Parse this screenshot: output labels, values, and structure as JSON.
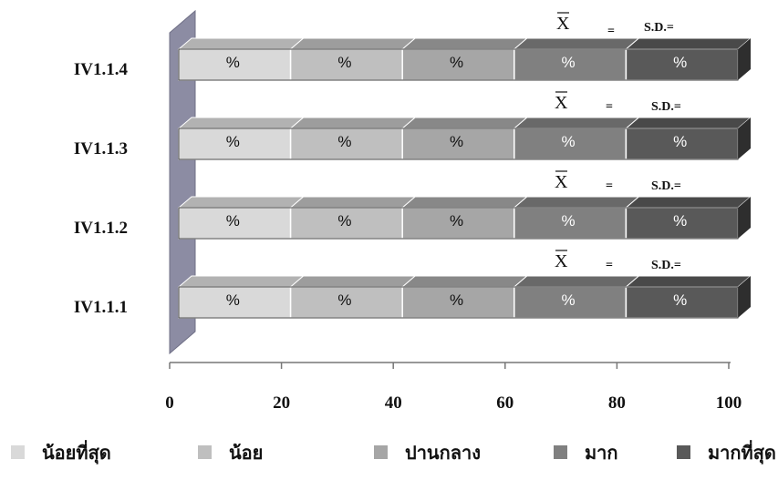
{
  "chart_data": {
    "type": "bar",
    "orientation": "horizontal",
    "stacked": true,
    "style": "3d",
    "categories": [
      "IV1.1.4",
      "IV1.1.3",
      "IV1.1.2",
      "IV1.1.1"
    ],
    "series": [
      {
        "name": "น้อยที่สุด",
        "color": "#d9d9d9",
        "values": [
          20,
          20,
          20,
          20
        ],
        "labels": [
          "%",
          "%",
          "%",
          "%"
        ]
      },
      {
        "name": "น้อย",
        "color": "#bfbfbf",
        "values": [
          20,
          20,
          20,
          20
        ],
        "labels": [
          "%",
          "%",
          "%",
          "%"
        ]
      },
      {
        "name": "ปานกลาง",
        "color": "#a6a6a6",
        "values": [
          20,
          20,
          20,
          20
        ],
        "labels": [
          "%",
          "%",
          "%",
          "%"
        ]
      },
      {
        "name": "มาก",
        "color": "#808080",
        "values": [
          20,
          20,
          20,
          20
        ],
        "labels": [
          "%",
          "%",
          "%",
          "%"
        ]
      },
      {
        "name": "มากที่สุด",
        "color": "#595959",
        "values": [
          20,
          20,
          20,
          20
        ],
        "labels": [
          "%",
          "%",
          "%",
          "%"
        ]
      }
    ],
    "annotations": [
      {
        "category": "IV1.1.4",
        "mean_symbol": "X",
        "equals": "=",
        "sd": "S.D.="
      },
      {
        "category": "IV1.1.3",
        "mean_symbol": "X",
        "equals": "=",
        "sd": "S.D.="
      },
      {
        "category": "IV1.1.2",
        "mean_symbol": "X",
        "equals": "=",
        "sd": "S.D.="
      },
      {
        "category": "IV1.1.1",
        "mean_symbol": "X",
        "equals": "=",
        "sd": "S.D.="
      }
    ],
    "xlim": [
      0,
      100
    ],
    "xticks": [
      0,
      20,
      40,
      60,
      80,
      100
    ],
    "title": "",
    "xlabel": "",
    "ylabel": "",
    "grid": false,
    "legend": "bottom"
  }
}
